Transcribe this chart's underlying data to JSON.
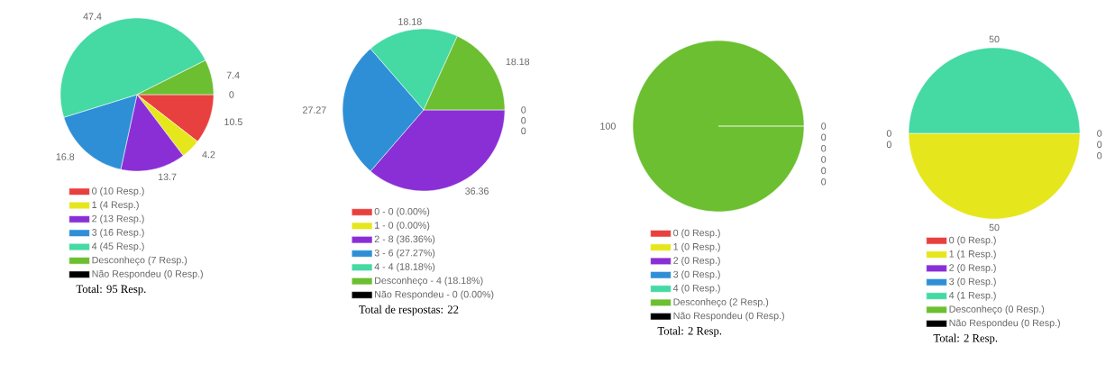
{
  "chart_data": [
    {
      "type": "pie",
      "categories": [
        "0 (10 Resp.)",
        "1 (4 Resp.)",
        "2 (13 Resp.)",
        "3 (16 Resp.)",
        "4 (45 Resp.)",
        "Desconheço (7 Resp.)",
        "Não Respondeu (0 Resp.)"
      ],
      "values": [
        10.5,
        4.2,
        13.7,
        16.8,
        47.4,
        7.4,
        0
      ],
      "value_labels": [
        "10.5",
        "4.2",
        "13.7",
        "16.8",
        "47.4",
        "7.4",
        "0"
      ],
      "colors": [
        "#e8403f",
        "#e6e61d",
        "#8a2fd6",
        "#2e8fd6",
        "#45d9a3",
        "#6cbf30",
        "#000000"
      ],
      "legend": "bottom",
      "annotations": [
        "Total: 95 Resp."
      ]
    },
    {
      "type": "pie",
      "categories": [
        "0 - 0 (0.00%)",
        "1 - 0 (0.00%)",
        "2 - 8 (36.36%)",
        "3 - 6 (27.27%)",
        "4 - 4 (18.18%)",
        "Desconheço - 4 (18.18%)",
        "Não Respondeu - 0 (0.00%)"
      ],
      "values": [
        0,
        0,
        36.36,
        27.27,
        18.18,
        18.18,
        0
      ],
      "value_labels": [
        "0",
        "0",
        "36.36",
        "27.27",
        "18.18",
        "18.18",
        "0"
      ],
      "colors": [
        "#e8403f",
        "#e6e61d",
        "#8a2fd6",
        "#2e8fd6",
        "#45d9a3",
        "#6cbf30",
        "#000000"
      ],
      "legend": "bottom",
      "annotations": [
        "Total de respostas: 22"
      ]
    },
    {
      "type": "pie",
      "categories": [
        "0 (0 Resp.)",
        "1 (0 Resp.)",
        "2 (0 Resp.)",
        "3 (0 Resp.)",
        "4 (0 Resp.)",
        "Desconheço (2 Resp.)",
        "Não Respondeu (0 Resp.)"
      ],
      "values": [
        0,
        0,
        0,
        0,
        0,
        100,
        0
      ],
      "value_labels": [
        "0",
        "0",
        "0",
        "0",
        "0",
        "100",
        "0"
      ],
      "colors": [
        "#e8403f",
        "#e6e61d",
        "#8a2fd6",
        "#2e8fd6",
        "#45d9a3",
        "#6cbf30",
        "#000000"
      ],
      "legend": "bottom",
      "annotations": [
        "Total: 2 Resp."
      ]
    },
    {
      "type": "pie",
      "categories": [
        "0 (0 Resp.)",
        "1 (1 Resp.)",
        "2 (0 Resp.)",
        "3 (0 Resp.)",
        "4 (1 Resp.)",
        "Desconheço (0 Resp.)",
        "Não Respondeu (0 Resp.)"
      ],
      "values": [
        0,
        50,
        0,
        0,
        50,
        0,
        0
      ],
      "value_labels": [
        "0",
        "50",
        "0",
        "0",
        "50",
        "0",
        "0"
      ],
      "colors": [
        "#e8403f",
        "#e6e61d",
        "#8a2fd6",
        "#2e8fd6",
        "#45d9a3",
        "#6cbf30",
        "#000000"
      ],
      "legend": "bottom",
      "annotations": [
        "Total: 2 Resp."
      ]
    }
  ]
}
